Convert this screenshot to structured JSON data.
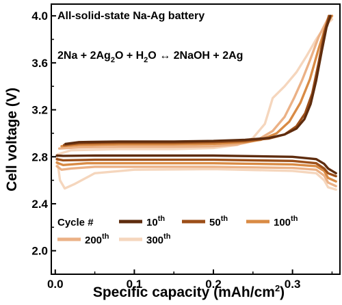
{
  "chart_data": {
    "type": "line",
    "title": "All-solid-state Na-Ag battery",
    "equation": {
      "left": "2Na + 2Ag",
      "sub1": "2",
      "mid": "O + H",
      "sub2": "2",
      "right": "O ↔ 2NaOH + 2Ag"
    },
    "xlabel": "Specific capacity (mAh/cm",
    "xlabel_sup": "2",
    "xlabel_tail": ")",
    "ylabel": "Cell voltage (V)",
    "xlim": [
      -0.005,
      0.36
    ],
    "ylim": [
      1.8,
      4.1
    ],
    "xticks": [
      0.0,
      0.1,
      0.2,
      0.3
    ],
    "xtick_labels": [
      "0.0",
      "0.1",
      "0.2",
      "0.3"
    ],
    "yticks": [
      2.0,
      2.4,
      2.8,
      3.2,
      3.6,
      4.0
    ],
    "ytick_labels": [
      "2.0",
      "2.4",
      "2.8",
      "3.2",
      "3.6",
      "4.0"
    ],
    "legend_title": "Cycle #",
    "legend_placement": "bottom",
    "series": [
      {
        "name": "10",
        "sup": "th",
        "color": "#5e2c0e",
        "charge": [
          [
            0.013,
            2.91
          ],
          [
            0.03,
            2.925
          ],
          [
            0.08,
            2.93
          ],
          [
            0.15,
            2.93
          ],
          [
            0.2,
            2.935
          ],
          [
            0.24,
            2.945
          ],
          [
            0.27,
            2.96
          ],
          [
            0.29,
            2.99
          ],
          [
            0.305,
            3.04
          ],
          [
            0.315,
            3.12
          ],
          [
            0.323,
            3.25
          ],
          [
            0.33,
            3.45
          ],
          [
            0.337,
            3.7
          ],
          [
            0.343,
            3.9
          ],
          [
            0.348,
            4.0
          ]
        ],
        "discharge": [
          [
            0.002,
            2.81
          ],
          [
            0.01,
            2.808
          ],
          [
            0.05,
            2.81
          ],
          [
            0.1,
            2.81
          ],
          [
            0.2,
            2.81
          ],
          [
            0.3,
            2.8
          ],
          [
            0.33,
            2.78
          ],
          [
            0.34,
            2.74
          ],
          [
            0.345,
            2.7
          ],
          [
            0.355,
            2.66
          ]
        ]
      },
      {
        "name": "50",
        "sup": "th",
        "color": "#9c4f19",
        "charge": [
          [
            0.011,
            2.9
          ],
          [
            0.03,
            2.915
          ],
          [
            0.08,
            2.92
          ],
          [
            0.15,
            2.92
          ],
          [
            0.2,
            2.925
          ],
          [
            0.24,
            2.935
          ],
          [
            0.27,
            2.955
          ],
          [
            0.29,
            2.99
          ],
          [
            0.305,
            3.06
          ],
          [
            0.316,
            3.17
          ],
          [
            0.325,
            3.34
          ],
          [
            0.333,
            3.6
          ],
          [
            0.34,
            3.85
          ],
          [
            0.346,
            4.0
          ]
        ],
        "discharge": [
          [
            0.002,
            2.78
          ],
          [
            0.01,
            2.77
          ],
          [
            0.05,
            2.775
          ],
          [
            0.1,
            2.775
          ],
          [
            0.2,
            2.775
          ],
          [
            0.3,
            2.765
          ],
          [
            0.33,
            2.745
          ],
          [
            0.34,
            2.7
          ],
          [
            0.345,
            2.66
          ],
          [
            0.355,
            2.635
          ]
        ]
      },
      {
        "name": "100",
        "sup": "th",
        "color": "#d98b45",
        "charge": [
          [
            0.008,
            2.89
          ],
          [
            0.03,
            2.9
          ],
          [
            0.08,
            2.905
          ],
          [
            0.15,
            2.905
          ],
          [
            0.2,
            2.91
          ],
          [
            0.24,
            2.925
          ],
          [
            0.26,
            2.945
          ],
          [
            0.28,
            3.0
          ],
          [
            0.296,
            3.1
          ],
          [
            0.31,
            3.26
          ],
          [
            0.322,
            3.46
          ],
          [
            0.333,
            3.72
          ],
          [
            0.343,
            3.93
          ],
          [
            0.35,
            4.0
          ]
        ],
        "discharge": [
          [
            0.002,
            2.75
          ],
          [
            0.01,
            2.73
          ],
          [
            0.04,
            2.745
          ],
          [
            0.1,
            2.745
          ],
          [
            0.2,
            2.745
          ],
          [
            0.3,
            2.735
          ],
          [
            0.33,
            2.72
          ],
          [
            0.34,
            2.68
          ],
          [
            0.345,
            2.62
          ],
          [
            0.355,
            2.59
          ]
        ]
      },
      {
        "name": "200",
        "sup": "th",
        "color": "#ebb186",
        "charge": [
          [
            0.005,
            2.87
          ],
          [
            0.03,
            2.88
          ],
          [
            0.08,
            2.885
          ],
          [
            0.15,
            2.885
          ],
          [
            0.2,
            2.89
          ],
          [
            0.23,
            2.905
          ],
          [
            0.255,
            2.94
          ],
          [
            0.275,
            3.02
          ],
          [
            0.29,
            3.14
          ],
          [
            0.302,
            3.3
          ],
          [
            0.312,
            3.45
          ],
          [
            0.322,
            3.62
          ],
          [
            0.333,
            3.82
          ],
          [
            0.345,
            3.98
          ],
          [
            0.35,
            4.0
          ]
        ],
        "discharge": [
          [
            0.002,
            2.72
          ],
          [
            0.008,
            2.69
          ],
          [
            0.02,
            2.7
          ],
          [
            0.05,
            2.715
          ],
          [
            0.1,
            2.715
          ],
          [
            0.2,
            2.715
          ],
          [
            0.3,
            2.705
          ],
          [
            0.33,
            2.69
          ],
          [
            0.34,
            2.64
          ],
          [
            0.345,
            2.58
          ],
          [
            0.355,
            2.55
          ]
        ]
      },
      {
        "name": "300",
        "sup": "th",
        "color": "#f5d6bd",
        "charge": [
          [
            0.003,
            2.82
          ],
          [
            0.02,
            2.855
          ],
          [
            0.08,
            2.865
          ],
          [
            0.15,
            2.865
          ],
          [
            0.2,
            2.875
          ],
          [
            0.23,
            2.9
          ],
          [
            0.25,
            2.96
          ],
          [
            0.265,
            3.08
          ],
          [
            0.275,
            3.3
          ],
          [
            0.29,
            3.4
          ],
          [
            0.305,
            3.52
          ],
          [
            0.318,
            3.66
          ],
          [
            0.33,
            3.8
          ],
          [
            0.342,
            3.92
          ],
          [
            0.35,
            3.97
          ]
        ],
        "discharge": [
          [
            0.002,
            2.8
          ],
          [
            0.006,
            2.6
          ],
          [
            0.012,
            2.53
          ],
          [
            0.025,
            2.57
          ],
          [
            0.05,
            2.66
          ],
          [
            0.1,
            2.69
          ],
          [
            0.2,
            2.695
          ],
          [
            0.3,
            2.68
          ],
          [
            0.33,
            2.66
          ],
          [
            0.34,
            2.6
          ],
          [
            0.345,
            2.54
          ],
          [
            0.355,
            2.52
          ]
        ]
      }
    ]
  }
}
